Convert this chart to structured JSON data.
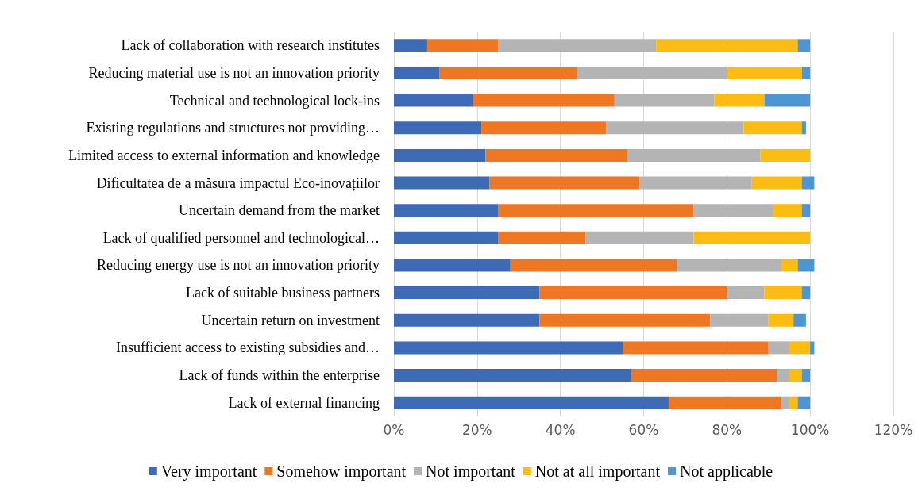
{
  "chart_data": {
    "type": "bar",
    "orientation": "horizontal",
    "stacked": true,
    "categories": [
      "Lack of collaboration with research institutes",
      "Reducing material use is not an innovation priority",
      "Technical and technological lock-ins",
      "Existing regulations and structures not providing…",
      "Limited access to external information and knowledge",
      "Dificultatea de a măsura impactul Eco-inovațiilor",
      "Uncertain demand from the market",
      "Lack of qualified personnel and technological…",
      "Reducing energy use is not an innovation priority",
      "Lack of suitable business partners",
      "Uncertain return on investment",
      "Insufficient access to existing subsidies and…",
      "Lack of funds within the enterprise",
      "Lack of external financing"
    ],
    "series": [
      {
        "name": "Very important",
        "color": "#3d6bb5",
        "values": [
          8,
          11,
          19,
          21,
          22,
          23,
          25,
          25,
          28,
          35,
          35,
          55,
          57,
          66
        ]
      },
      {
        "name": "Somehow important",
        "color": "#ed7722",
        "values": [
          17,
          33,
          34,
          30,
          34,
          36,
          47,
          21,
          40,
          45,
          41,
          35,
          35,
          27
        ]
      },
      {
        "name": "Not important",
        "color": "#b4b4b4",
        "values": [
          38,
          36,
          24,
          33,
          32,
          27,
          19,
          26,
          25,
          9,
          14,
          5,
          3,
          2
        ]
      },
      {
        "name": "Not at all important",
        "color": "#fbbc13",
        "values": [
          34,
          18,
          12,
          14,
          12,
          12,
          7,
          28,
          4,
          9,
          6,
          5,
          3,
          2
        ]
      },
      {
        "name": "Not applicable",
        "color": "#4f96d1",
        "values": [
          3,
          2,
          11,
          1,
          0,
          3,
          2,
          0,
          4,
          2,
          3,
          1,
          2,
          3
        ]
      }
    ],
    "xlim": [
      0,
      120
    ],
    "xticks": [
      {
        "value": 0,
        "label": "0%"
      },
      {
        "value": 20,
        "label": "20%"
      },
      {
        "value": 40,
        "label": "40%"
      },
      {
        "value": 60,
        "label": "60%"
      },
      {
        "value": 80,
        "label": "80%"
      },
      {
        "value": 100,
        "label": "100%"
      },
      {
        "value": 120,
        "label": "120%"
      }
    ],
    "grid": "x",
    "legend": "bottom"
  }
}
